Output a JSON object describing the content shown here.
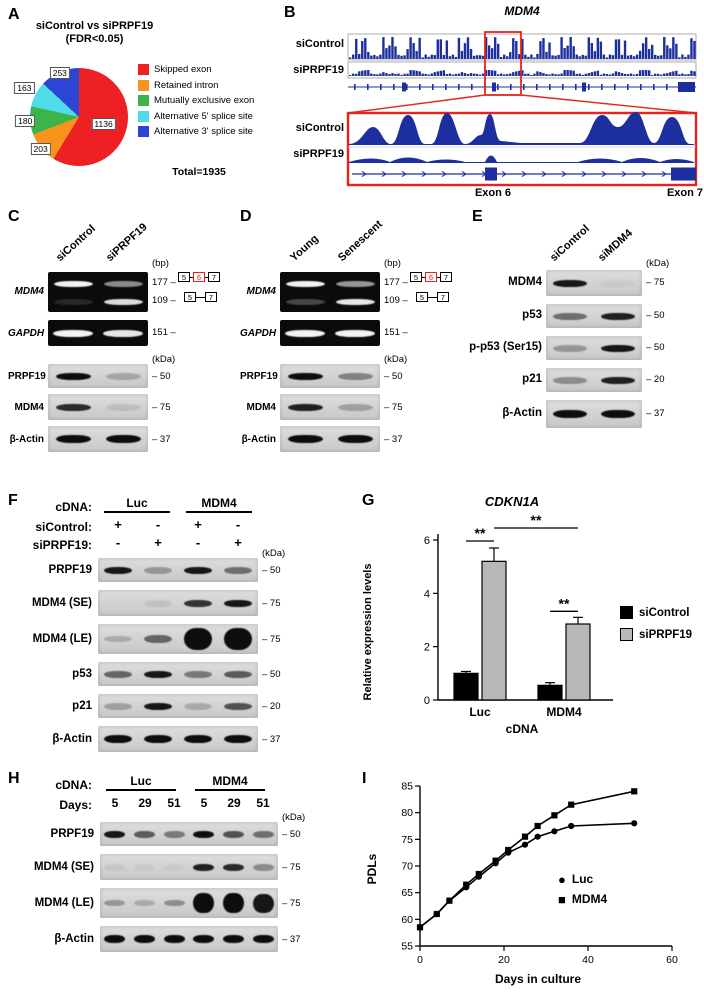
{
  "figure": {
    "panel_labels": {
      "A": "A",
      "B": "B",
      "C": "C",
      "D": "D",
      "E": "E",
      "F": "F",
      "G": "G",
      "H": "H",
      "I": "I"
    }
  },
  "panelA": {
    "title_line1": "siControl vs siPRPF19",
    "title_line2": "(FDR<0.05)",
    "total_label": "Total=1935",
    "slice_labels": [
      "1136",
      "203",
      "180",
      "163",
      "253"
    ],
    "legend": [
      {
        "label": "Skipped exon",
        "color": "#ed2024"
      },
      {
        "label": "Retained intron",
        "color": "#f7941e"
      },
      {
        "label": "Mutually exclusive exon",
        "color": "#3bb54a"
      },
      {
        "label": "Alternative 5' splice site",
        "color": "#4fdbe8"
      },
      {
        "label": "Alternative 3' splice site",
        "color": "#2b45d4"
      }
    ]
  },
  "panelB": {
    "gene_title": "MDM4",
    "track1_label": "siControl",
    "track2_label": "siPRPF19",
    "zoom_track1_label": "siControl",
    "zoom_track2_label": "siPRPF19",
    "exon6_label": "Exon 6",
    "exon7_label": "Exon 7"
  },
  "panelC": {
    "col_headers": [
      "siControl",
      "siPRPF19"
    ],
    "bp_label": "(bp)",
    "kda_label": "(kDa)",
    "bp_markers": [
      "177 –",
      "109 –",
      "151 –"
    ],
    "exon_top": [
      "5",
      "6",
      "7"
    ],
    "exon_bottom": [
      "5",
      "7"
    ],
    "gel_rows": [
      {
        "label": "MDM4",
        "bands": [
          {
            "pos": 0.3,
            "h": 6,
            "w": 0.78,
            "int": [
              1,
              0.55
            ]
          },
          {
            "pos": 0.74,
            "h": 6,
            "w": 0.78,
            "int": [
              0.12,
              0.9
            ]
          }
        ]
      },
      {
        "label": "GAPDH",
        "bands": [
          {
            "pos": 0.52,
            "h": 7,
            "w": 0.8,
            "int": [
              1,
              0.95
            ]
          }
        ]
      }
    ],
    "blot_rows": [
      {
        "label": "PRPF19",
        "marker": "– 50",
        "bands": [
          {
            "pos": 0.5,
            "h": 7,
            "int": [
              1,
              0.22
            ]
          }
        ]
      },
      {
        "label": "MDM4",
        "marker": "– 75",
        "bands": [
          {
            "pos": 0.5,
            "h": 7,
            "int": [
              0.85,
              0.1
            ]
          }
        ]
      },
      {
        "label": "β-Actin",
        "marker": "– 37",
        "bands": [
          {
            "pos": 0.5,
            "h": 8,
            "int": [
              1,
              1
            ]
          }
        ]
      }
    ]
  },
  "panelD": {
    "col_headers": [
      "Young",
      "Senescent"
    ],
    "bp_label": "(bp)",
    "kda_label": "(kDa)",
    "bp_markers": [
      "177 –",
      "109 –",
      "151 –"
    ],
    "exon_top": [
      "5",
      "6",
      "7"
    ],
    "exon_bottom": [
      "5",
      "7"
    ],
    "gel_rows": [
      {
        "label": "MDM4",
        "bands": [
          {
            "pos": 0.3,
            "h": 6,
            "w": 0.78,
            "int": [
              1,
              0.6
            ]
          },
          {
            "pos": 0.74,
            "h": 6,
            "w": 0.78,
            "int": [
              0.25,
              0.95
            ]
          }
        ]
      },
      {
        "label": "GAPDH",
        "bands": [
          {
            "pos": 0.52,
            "h": 7,
            "w": 0.8,
            "int": [
              1,
              1
            ]
          }
        ]
      }
    ],
    "blot_rows": [
      {
        "label": "PRPF19",
        "marker": "– 50",
        "bands": [
          {
            "pos": 0.5,
            "h": 7,
            "int": [
              1,
              0.4
            ]
          }
        ]
      },
      {
        "label": "MDM4",
        "marker": "– 75",
        "bands": [
          {
            "pos": 0.5,
            "h": 7,
            "int": [
              0.9,
              0.25
            ]
          }
        ]
      },
      {
        "label": "β-Actin",
        "marker": "– 37",
        "bands": [
          {
            "pos": 0.5,
            "h": 8,
            "int": [
              1,
              1
            ]
          }
        ]
      }
    ]
  },
  "panelE": {
    "col_headers": [
      "siControl",
      "siMDM4"
    ],
    "kda_label": "(kDa)",
    "blot_rows": [
      {
        "label": "MDM4",
        "marker": "– 75",
        "bands": [
          {
            "pos": 0.5,
            "h": 7,
            "int": [
              0.95,
              0.04
            ]
          }
        ]
      },
      {
        "label": "p53",
        "marker": "– 50",
        "bands": [
          {
            "pos": 0.5,
            "h": 7,
            "int": [
              0.5,
              0.9
            ]
          }
        ]
      },
      {
        "label": "p-p53 (Ser15)",
        "marker": "– 50",
        "bands": [
          {
            "pos": 0.5,
            "h": 7,
            "int": [
              0.3,
              0.95
            ]
          }
        ]
      },
      {
        "label": "p21",
        "marker": "– 20",
        "bands": [
          {
            "pos": 0.5,
            "h": 7,
            "int": [
              0.35,
              0.9
            ]
          }
        ]
      },
      {
        "label": "β-Actin",
        "marker": "– 37",
        "bands": [
          {
            "pos": 0.5,
            "h": 8,
            "int": [
              1,
              1
            ]
          }
        ]
      }
    ]
  },
  "panelF": {
    "cdna_label": "cDNA:",
    "cdna_groups": [
      "Luc",
      "MDM4"
    ],
    "row1_label": "siControl:",
    "row1_values": [
      "+",
      "-",
      "+",
      "-"
    ],
    "row2_label": "siPRPF19:",
    "row2_values": [
      "-",
      "+",
      "-",
      "+"
    ],
    "kda_label": "(kDa)",
    "blot_rows": [
      {
        "label": "PRPF19",
        "marker": "– 50",
        "bands": [
          {
            "pos": 0.5,
            "h": 7,
            "int": [
              0.95,
              0.3,
              0.95,
              0.5
            ]
          }
        ]
      },
      {
        "label": "MDM4 (SE)",
        "marker": "– 75",
        "bands": [
          {
            "pos": 0.5,
            "h": 7,
            "int": [
              0,
              0.08,
              0.8,
              0.95
            ]
          }
        ]
      },
      {
        "label": "MDM4 (LE)",
        "marker": "– 75",
        "bands": [
          {
            "pos": 0.5,
            "hs": [
              6,
              8,
              22,
              22
            ],
            "int": [
              0.2,
              0.55,
              1,
              1
            ]
          }
        ]
      },
      {
        "label": "p53",
        "marker": "– 50",
        "bands": [
          {
            "pos": 0.5,
            "h": 7,
            "int": [
              0.55,
              0.95,
              0.45,
              0.6
            ]
          }
        ]
      },
      {
        "label": "p21",
        "marker": "– 20",
        "bands": [
          {
            "pos": 0.5,
            "h": 7,
            "int": [
              0.25,
              0.95,
              0.2,
              0.65
            ]
          }
        ]
      },
      {
        "label": "β-Actin",
        "marker": "– 37",
        "bands": [
          {
            "pos": 0.5,
            "h": 8,
            "int": [
              1,
              1,
              1,
              1
            ]
          }
        ]
      }
    ]
  },
  "panelH": {
    "cdna_label": "cDNA:",
    "cdna_groups": [
      "Luc",
      "MDM4"
    ],
    "days_label": "Days:",
    "days_values": [
      "5",
      "29",
      "51",
      "5",
      "29",
      "51"
    ],
    "kda_label": "(kDa)",
    "blot_rows": [
      {
        "label": "PRPF19",
        "marker": "– 50",
        "bands": [
          {
            "pos": 0.5,
            "h": 7,
            "int": [
              0.95,
              0.6,
              0.45,
              1,
              0.65,
              0.5
            ]
          }
        ]
      },
      {
        "label": "MDM4 (SE)",
        "marker": "– 75",
        "bands": [
          {
            "pos": 0.5,
            "h": 7,
            "int": [
              0.06,
              0.04,
              0.04,
              0.9,
              0.85,
              0.35
            ]
          }
        ]
      },
      {
        "label": "MDM4 (LE)",
        "marker": "– 75",
        "bands": [
          {
            "pos": 0.5,
            "hs": [
              6,
              6,
              6,
              20,
              20,
              19
            ],
            "int": [
              0.3,
              0.2,
              0.35,
              1,
              1,
              0.95
            ]
          }
        ]
      },
      {
        "label": "β-Actin",
        "marker": "– 37",
        "bands": [
          {
            "pos": 0.5,
            "h": 8,
            "int": [
              1,
              1,
              1,
              1,
              1,
              1
            ]
          }
        ]
      }
    ]
  },
  "chart_data": [
    {
      "id": "pie-splicing",
      "type": "pie",
      "title": "siControl vs siPRPF19 (FDR<0.05)",
      "categories": [
        "Skipped exon",
        "Retained intron",
        "Mutually exclusive exon",
        "Alternative 5' splice site",
        "Alternative 3' splice site"
      ],
      "values": [
        1136,
        203,
        180,
        163,
        253
      ],
      "colors": [
        "#ed2024",
        "#f7941e",
        "#3bb54a",
        "#4fdbe8",
        "#2b45d4"
      ],
      "total": 1935
    },
    {
      "id": "bar-cdkn1a",
      "type": "bar",
      "title": "CDKN1A",
      "categories": [
        "Luc",
        "MDM4"
      ],
      "series": [
        {
          "name": "siControl",
          "color": "#000000",
          "values": [
            1.0,
            0.55
          ],
          "errors": [
            0.07,
            0.1
          ]
        },
        {
          "name": "siPRPF19",
          "color": "#b8b8b8",
          "values": [
            5.2,
            2.85
          ],
          "errors": [
            0.5,
            0.25
          ]
        }
      ],
      "significance": [
        "**",
        "**",
        "**"
      ],
      "ylabel": "Relative expression levels",
      "xlabel": "cDNA",
      "ylim": [
        0,
        6
      ],
      "yticks": [
        0,
        2,
        4,
        6
      ],
      "legend_position": "right"
    },
    {
      "id": "line-pdl",
      "type": "line",
      "xlabel": "Days in culture",
      "ylabel": "PDLs",
      "xlim": [
        0,
        60
      ],
      "ylim": [
        55,
        85
      ],
      "xticks": [
        0,
        20,
        40,
        60
      ],
      "yticks": [
        55,
        60,
        65,
        70,
        75,
        80,
        85
      ],
      "series": [
        {
          "name": "Luc",
          "marker": "circle",
          "x": [
            0,
            4,
            7,
            11,
            14,
            18,
            21,
            25,
            28,
            32,
            36,
            51
          ],
          "y": [
            58.5,
            61,
            63.5,
            66,
            68,
            70.5,
            72.5,
            74,
            75.5,
            76.5,
            77.5,
            78
          ]
        },
        {
          "name": "MDM4",
          "marker": "square",
          "x": [
            0,
            4,
            7,
            11,
            14,
            18,
            21,
            25,
            28,
            32,
            36,
            51
          ],
          "y": [
            58.5,
            61,
            63.5,
            66.5,
            68.5,
            71,
            73,
            75.5,
            77.5,
            79.5,
            81.5,
            84
          ]
        }
      ],
      "legend_position": "inside-right"
    }
  ]
}
